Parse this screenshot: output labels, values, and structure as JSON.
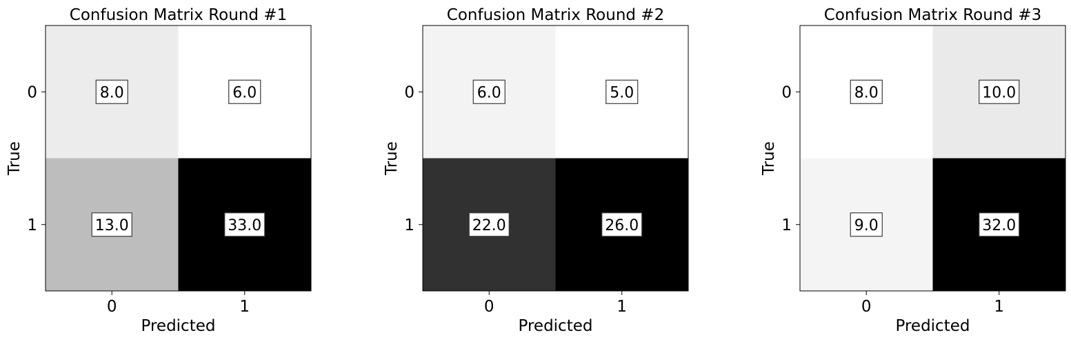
{
  "figure": {
    "background": "#ffffff",
    "colormap": "Greys"
  },
  "chart_data": [
    {
      "type": "heatmap",
      "title": "Confusion Matrix Round #1",
      "xlabel": "Predicted",
      "ylabel": "True",
      "x_categories": [
        "0",
        "1"
      ],
      "y_categories": [
        "0",
        "1"
      ],
      "values": [
        [
          8,
          6
        ],
        [
          13,
          33
        ]
      ],
      "cell_labels": [
        [
          "8.0",
          "6.0"
        ],
        [
          "13.0",
          "33.0"
        ]
      ],
      "colormap": "Greys"
    },
    {
      "type": "heatmap",
      "title": "Confusion Matrix Round #2",
      "xlabel": "Predicted",
      "ylabel": "True",
      "x_categories": [
        "0",
        "1"
      ],
      "y_categories": [
        "0",
        "1"
      ],
      "values": [
        [
          6,
          5
        ],
        [
          22,
          26
        ]
      ],
      "cell_labels": [
        [
          "6.0",
          "5.0"
        ],
        [
          "22.0",
          "26.0"
        ]
      ],
      "colormap": "Greys"
    },
    {
      "type": "heatmap",
      "title": "Confusion Matrix Round #3",
      "xlabel": "Predicted",
      "ylabel": "True",
      "x_categories": [
        "0",
        "1"
      ],
      "y_categories": [
        "0",
        "1"
      ],
      "values": [
        [
          8,
          10
        ],
        [
          9,
          32
        ]
      ],
      "cell_labels": [
        [
          "8.0",
          "10.0"
        ],
        [
          "9.0",
          "32.0"
        ]
      ],
      "colormap": "Greys"
    }
  ]
}
